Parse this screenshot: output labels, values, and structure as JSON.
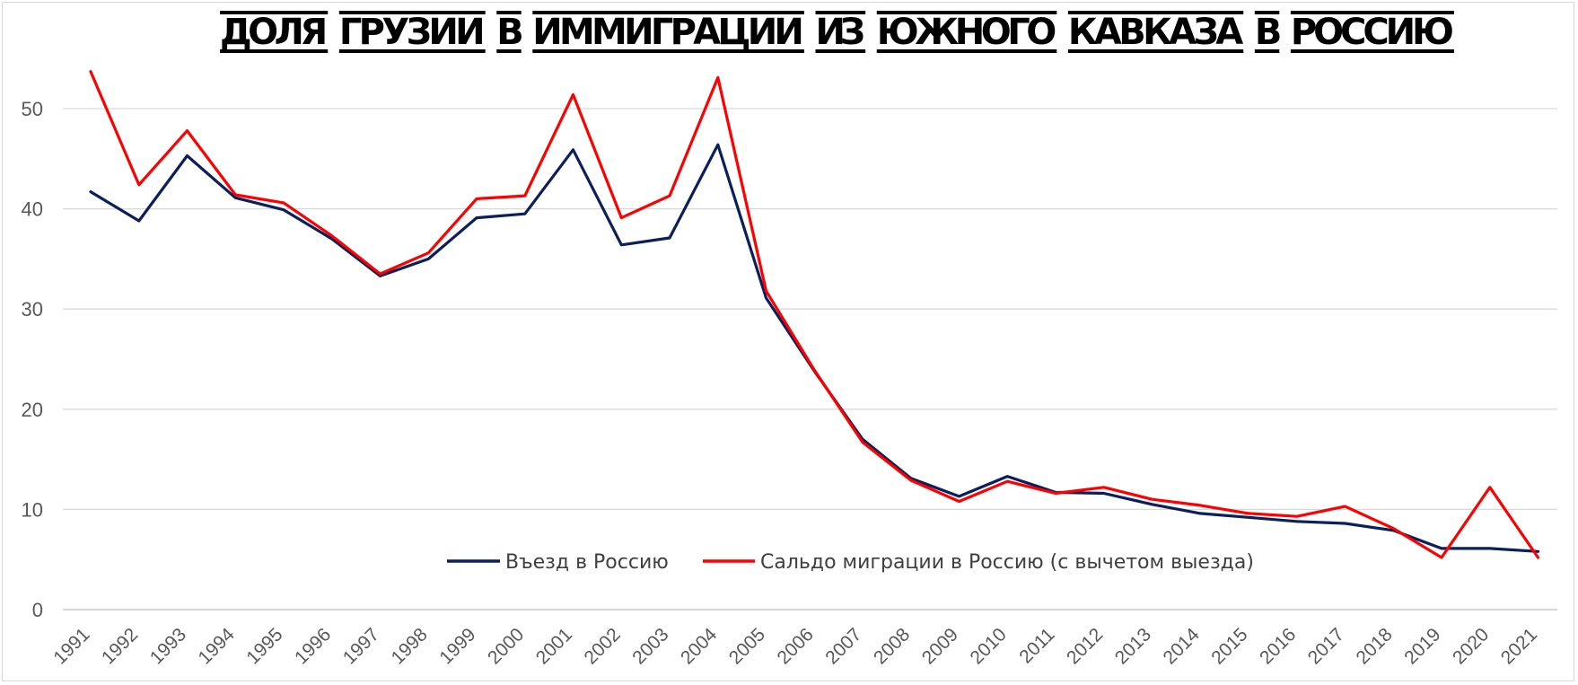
{
  "chart_data": {
    "type": "line",
    "title": "ДОЛЯ ГРУЗИИ В ИММИГРАЦИИ ИЗ ЮЖНОГО КАВКАЗА В РОССИЮ",
    "x": [
      "1991",
      "1992",
      "1993",
      "1994",
      "1995",
      "1996",
      "1997",
      "1998",
      "1999",
      "2000",
      "2001",
      "2002",
      "2003",
      "2004",
      "2005",
      "2006",
      "2007",
      "2008",
      "2009",
      "2010",
      "2011",
      "2012",
      "2013",
      "2014",
      "2015",
      "2016",
      "2017",
      "2018",
      "2019",
      "2020",
      "2021"
    ],
    "ylim": [
      0,
      55
    ],
    "yticks": [
      "0",
      "10",
      "20",
      "30",
      "40",
      "50"
    ],
    "grid": true,
    "legend_position": "bottom-center",
    "series": [
      {
        "name": "Въезд в Россию",
        "color": "#0b1f5c",
        "values": [
          41.7,
          38.8,
          45.3,
          41.1,
          39.9,
          37.0,
          33.3,
          35.0,
          39.1,
          39.5,
          45.9,
          36.4,
          37.1,
          46.4,
          31.1,
          23.8,
          17.0,
          13.1,
          11.3,
          13.3,
          11.7,
          11.6,
          10.5,
          9.6,
          9.2,
          8.8,
          8.6,
          7.9,
          6.1,
          6.1,
          5.8
        ]
      },
      {
        "name": "Сальдо миграции в Россию (с вычетом выезда)",
        "color": "#ff0000",
        "values": [
          53.7,
          42.4,
          47.8,
          41.4,
          40.6,
          37.3,
          33.5,
          35.6,
          41.0,
          41.3,
          51.4,
          39.1,
          41.3,
          53.1,
          31.8,
          23.9,
          16.7,
          12.9,
          10.8,
          12.8,
          11.6,
          12.2,
          11.0,
          10.4,
          9.6,
          9.3,
          10.3,
          8.1,
          5.2,
          12.2,
          5.2
        ]
      }
    ]
  }
}
